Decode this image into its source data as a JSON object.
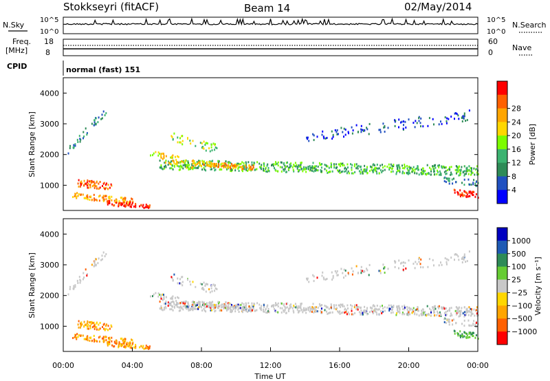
{
  "header": {
    "station": "Stokkseyri (fitACF)",
    "beam": "Beam 14",
    "date": "02/May/2014"
  },
  "nsky_panel": {
    "label": "N.Sky",
    "right_label": "N.Search",
    "left_ticks": [
      "10^5",
      "10^0"
    ],
    "right_ticks": [
      "10^5",
      "10^0"
    ]
  },
  "freq_panel": {
    "label_line1": "Freq.",
    "label_line2": "[MHz]",
    "left_ticks": [
      "18",
      "8"
    ],
    "right_ticks": [
      "60",
      "0"
    ],
    "right_label": "Nave"
  },
  "cpid_panel": {
    "label": "CPID",
    "text": "normal (fast) 151"
  },
  "colors": {
    "power_scale": [
      "#0000ff",
      "#2050c0",
      "#2e8b57",
      "#3cb371",
      "#7cfc00",
      "#ffd700",
      "#ffa500",
      "#ff6000",
      "#ff0000"
    ],
    "velocity_scale": [
      "#0000c0",
      "#1e5ab4",
      "#2e8b57",
      "#66cc33",
      "#c8c8c8",
      "#ffd700",
      "#ffa500",
      "#ff6000",
      "#ff0000"
    ]
  },
  "chart_data": [
    {
      "type": "heatmap",
      "name": "power",
      "ylabel": "Slant Range [km]",
      "ylim": [
        180,
        4500
      ],
      "xlim": [
        0,
        24
      ],
      "yticks": [
        "1000",
        "2000",
        "3000",
        "4000"
      ],
      "colorbar": {
        "label": "Power [dB]",
        "ticks": [
          "4",
          "8",
          "12",
          "16",
          "20",
          "24",
          "28"
        ],
        "range": [
          0,
          32
        ]
      }
    },
    {
      "type": "heatmap",
      "name": "velocity",
      "ylabel": "Slant Range [km]",
      "ylim": [
        180,
        4500
      ],
      "xlim": [
        0,
        24
      ],
      "yticks": [
        "1000",
        "2000",
        "3000",
        "4000"
      ],
      "xticks": [
        "00:00",
        "04:00",
        "08:00",
        "12:00",
        "16:00",
        "20:00",
        "00:00"
      ],
      "xlabel": "Time UT",
      "colorbar": {
        "label": "Velocity [m s⁻¹]",
        "ticks": [
          "1000",
          "500",
          "100",
          "25",
          "−25",
          "−100",
          "−500",
          "−1000"
        ]
      }
    }
  ]
}
